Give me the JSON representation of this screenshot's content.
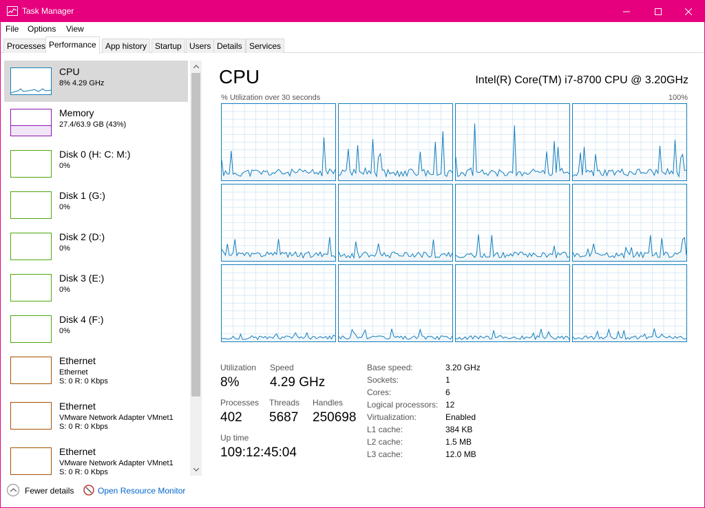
{
  "window": {
    "title": "Task Manager",
    "accent": "#e6007e"
  },
  "menu": [
    "File",
    "Options",
    "View"
  ],
  "tabs": [
    "Processes",
    "Performance",
    "App history",
    "Startup",
    "Users",
    "Details",
    "Services"
  ],
  "active_tab": "Performance",
  "sidebar": [
    {
      "name": "CPU",
      "sub": "8%  4.29 GHz",
      "sub2": "",
      "color": "#117dbb",
      "selected": true
    },
    {
      "name": "Memory",
      "sub": "27.4/63.9 GB (43%)",
      "sub2": "",
      "color": "#8b12ae",
      "selected": false
    },
    {
      "name": "Disk 0 (H: C: M:)",
      "sub": "0%",
      "sub2": "",
      "color": "#4da60c",
      "selected": false
    },
    {
      "name": "Disk 1 (G:)",
      "sub": "0%",
      "sub2": "",
      "color": "#4da60c",
      "selected": false
    },
    {
      "name": "Disk 2 (D:)",
      "sub": "0%",
      "sub2": "",
      "color": "#4da60c",
      "selected": false
    },
    {
      "name": "Disk 3 (E:)",
      "sub": "0%",
      "sub2": "",
      "color": "#4da60c",
      "selected": false
    },
    {
      "name": "Disk 4 (F:)",
      "sub": "0%",
      "sub2": "",
      "color": "#4da60c",
      "selected": false
    },
    {
      "name": "Ethernet",
      "sub": "Ethernet",
      "sub2": "S: 0  R: 0 Kbps",
      "color": "#a74f01",
      "selected": false
    },
    {
      "name": "Ethernet",
      "sub": "VMware Network Adapter VMnet1",
      "sub2": "S: 0  R: 0 Kbps",
      "color": "#a74f01",
      "selected": false
    },
    {
      "name": "Ethernet",
      "sub": "VMware Network Adapter VMnet1",
      "sub2": "S: 0  R: 0 Kbps",
      "color": "#a74f01",
      "selected": false
    }
  ],
  "main": {
    "title": "CPU",
    "model": "Intel(R) Core(TM) i7-8700 CPU @ 3.20GHz",
    "util_label": "% Utilization over 30 seconds",
    "util_max": "100%",
    "graph_color": "#117dbb",
    "stats": {
      "utilization_label": "Utilization",
      "utilization": "8%",
      "speed_label": "Speed",
      "speed": "4.29 GHz",
      "processes_label": "Processes",
      "processes": "402",
      "threads_label": "Threads",
      "threads": "5687",
      "handles_label": "Handles",
      "handles": "250698",
      "uptime_label": "Up time",
      "uptime": "109:12:45:04"
    },
    "details": [
      {
        "k": "Base speed:",
        "v": "3.20 GHz"
      },
      {
        "k": "Sockets:",
        "v": "1"
      },
      {
        "k": "Cores:",
        "v": "6"
      },
      {
        "k": "Logical processors:",
        "v": "12"
      },
      {
        "k": "Virtualization:",
        "v": "Enabled"
      },
      {
        "k": "L1 cache:",
        "v": "384 KB"
      },
      {
        "k": "L2 cache:",
        "v": "1.5 MB"
      },
      {
        "k": "L3 cache:",
        "v": "12.0 MB"
      }
    ]
  },
  "footer": {
    "fewer_details": "Fewer details",
    "resource_monitor": "Open Resource Monitor"
  }
}
